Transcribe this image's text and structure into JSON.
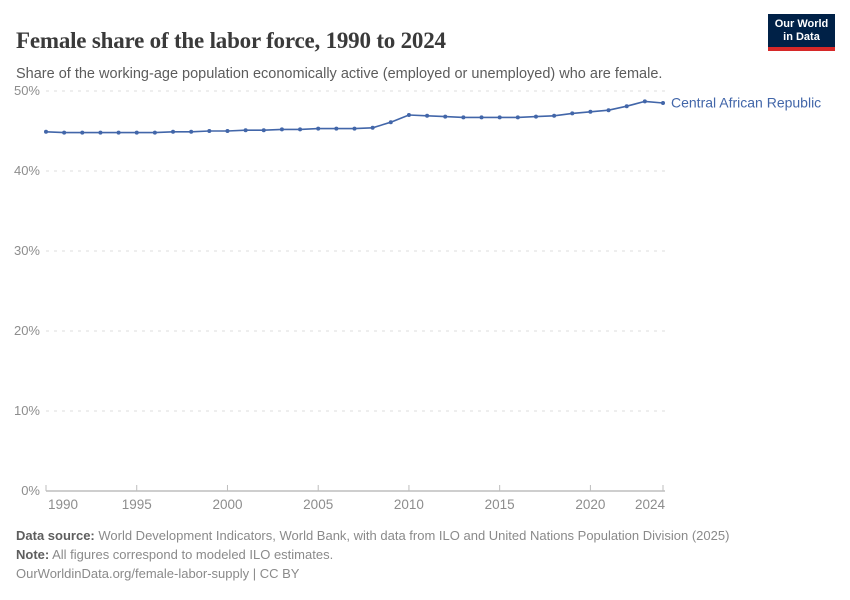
{
  "header": {
    "title": "Female share of the labor force, 1990 to 2024",
    "subtitle": "Share of the working-age population economically active (employed or unemployed) who are female.",
    "logo": {
      "line1": "Our World",
      "line2": "in Data",
      "bg_color": "#002147",
      "stripe_color": "#d62828"
    }
  },
  "chart_data": {
    "type": "line",
    "title": "Female share of the labor force, 1990 to 2024",
    "xlabel": "",
    "ylabel": "",
    "xlim": [
      1990,
      2024
    ],
    "ylim": [
      0,
      50
    ],
    "x_ticks": [
      1990,
      1995,
      2000,
      2005,
      2010,
      2015,
      2020,
      2024
    ],
    "y_ticks": [
      0,
      10,
      20,
      30,
      40,
      50
    ],
    "y_tick_suffix": "%",
    "grid": "horizontal-dashed",
    "legend_position": "end-of-line-label",
    "series": [
      {
        "name": "Central African Republic",
        "color": "#4266a9",
        "x": [
          1990,
          1991,
          1992,
          1993,
          1994,
          1995,
          1996,
          1997,
          1998,
          1999,
          2000,
          2001,
          2002,
          2003,
          2004,
          2005,
          2006,
          2007,
          2008,
          2009,
          2010,
          2011,
          2012,
          2013,
          2014,
          2015,
          2016,
          2017,
          2018,
          2019,
          2020,
          2021,
          2022,
          2023,
          2024
        ],
        "values": [
          44.9,
          44.8,
          44.8,
          44.8,
          44.8,
          44.8,
          44.8,
          44.9,
          44.9,
          45.0,
          45.0,
          45.1,
          45.1,
          45.2,
          45.2,
          45.3,
          45.3,
          45.3,
          45.4,
          46.1,
          47.0,
          46.9,
          46.8,
          46.7,
          46.7,
          46.7,
          46.7,
          46.8,
          46.9,
          47.2,
          47.4,
          47.6,
          48.1,
          48.7,
          48.5
        ]
      }
    ],
    "colors": {
      "gridline": "#dddddd",
      "axis": "#9e9e9e",
      "tick_label": "#8d8d8d"
    }
  },
  "footer": {
    "datasource_label": "Data source:",
    "datasource_text": " World Development Indicators, World Bank, with data from ILO and United Nations Population Division (2025)",
    "note_label": "Note:",
    "note_text": " All figures correspond to modeled ILO estimates.",
    "citation_link": "OurWorldinData.org/female-labor-supply",
    "citation_suffix": " | CC BY"
  }
}
